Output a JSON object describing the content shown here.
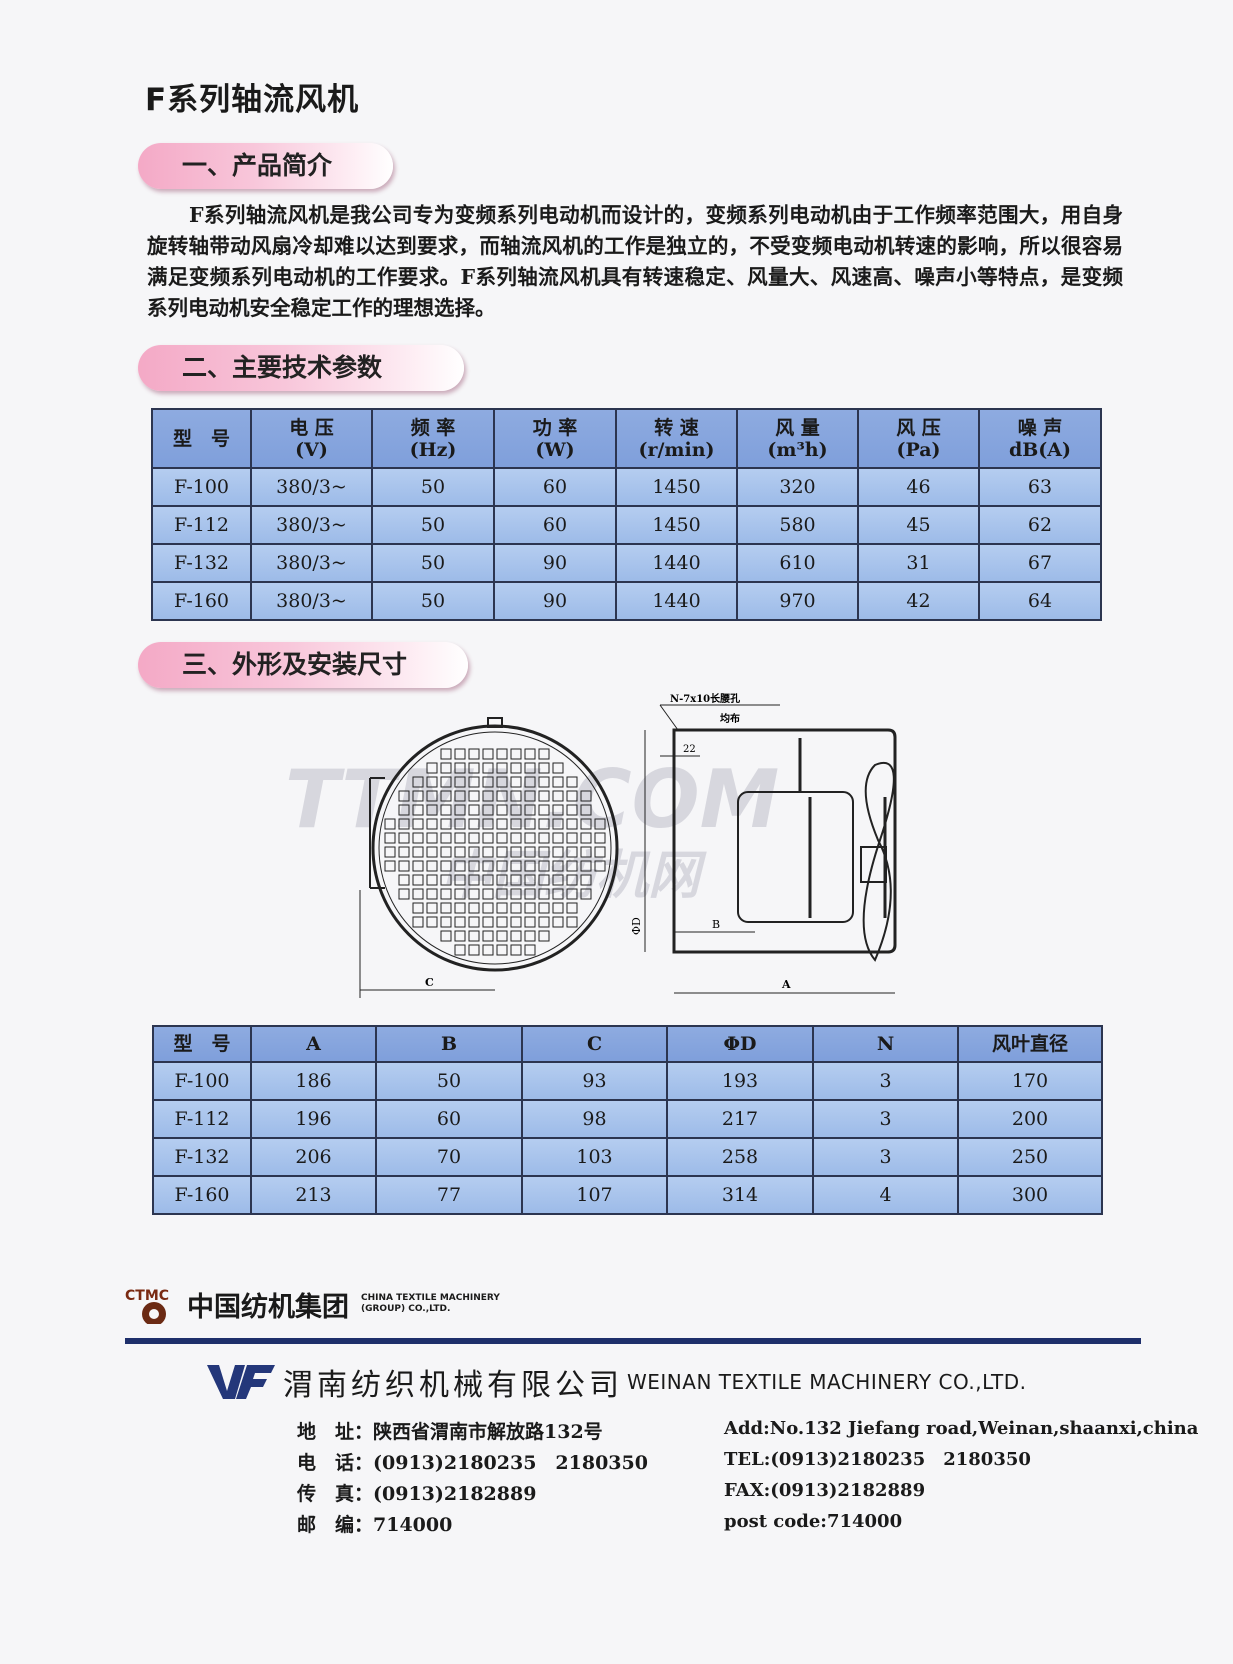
{
  "title": "F系列轴流风机",
  "sections": {
    "intro": "一、产品简介",
    "params": "二、主要技术参数",
    "dims": "三、外形及安装尺寸"
  },
  "intro_text": "F系列轴流风机是我公司专为变频系列电动机而设计的，变频系列电动机由于工作频率范围大，用自身旋转轴带动风扇冷却难以达到要求，而轴流风机的工作是独立的，不受变频电动机转速的影响，所以很容易满足变频系列电动机的工作要求。F系列轴流风机具有转速稳定、风量大、风速高、噪声小等特点，是变频系列电动机安全稳定工作的理想选择。",
  "params_table": {
    "headers": [
      [
        "型　号",
        ""
      ],
      [
        "电 压",
        "(V)"
      ],
      [
        "频 率",
        "(Hz)"
      ],
      [
        "功 率",
        "(W)"
      ],
      [
        "转 速",
        "(r/min)"
      ],
      [
        "风 量",
        "(m³h)"
      ],
      [
        "风 压",
        "(Pa)"
      ],
      [
        "噪 声",
        "dB(A)"
      ]
    ],
    "rows": [
      [
        "F-100",
        "380/3~",
        "50",
        "60",
        "1450",
        "320",
        "46",
        "63"
      ],
      [
        "F-112",
        "380/3~",
        "50",
        "60",
        "1450",
        "580",
        "45",
        "62"
      ],
      [
        "F-132",
        "380/3~",
        "50",
        "90",
        "1440",
        "610",
        "31",
        "67"
      ],
      [
        "F-160",
        "380/3~",
        "50",
        "90",
        "1440",
        "970",
        "42",
        "64"
      ]
    ]
  },
  "drawing": {
    "hole_note": "N-7x10长腰孔",
    "even": "均布",
    "dim_22": "22",
    "dim_D": "ΦD",
    "dim_A": "A",
    "dim_B": "B",
    "dim_C": "C"
  },
  "watermark": {
    "en": "TTMN.COM",
    "cn": "中国纺机网"
  },
  "dims_table": {
    "headers": [
      "型　号",
      "A",
      "B",
      "C",
      "ΦD",
      "N",
      "风叶直径"
    ],
    "rows": [
      [
        "F-100",
        "186",
        "50",
        "93",
        "193",
        "3",
        "170"
      ],
      [
        "F-112",
        "196",
        "60",
        "98",
        "217",
        "3",
        "200"
      ],
      [
        "F-132",
        "206",
        "70",
        "103",
        "258",
        "3",
        "250"
      ],
      [
        "F-160",
        "213",
        "77",
        "107",
        "314",
        "4",
        "300"
      ]
    ]
  },
  "footer": {
    "group_logo": "CTMC",
    "group_cn": "中国纺机集团",
    "group_en1": "CHINA TEXTILE MACHINERY",
    "group_en2": "(GROUP) CO.,LTD.",
    "company_logo": "WF",
    "company_cn": "渭南纺织机械有限公司",
    "company_en": "WEINAN TEXTILE MACHINERY CO.,LTD.",
    "cn_lines": [
      [
        "地　址：",
        "陕西省渭南市解放路132号"
      ],
      [
        "电　话：",
        "(0913)2180235　2180350"
      ],
      [
        "传　真：",
        "(0913)2182889"
      ],
      [
        "邮　编：",
        "714000"
      ]
    ],
    "en_lines": [
      "Add:No.132 Jiefang road,Weinan,shaanxi,china",
      "TEL:(0913)2180235　2180350",
      "FAX:(0913)2182889",
      "post code:714000"
    ]
  },
  "colors": {
    "table_header": "#7f9fdb",
    "table_cell": "#a9c4ec",
    "pill": "#f4a9c6",
    "rule": "#1e2f6b"
  }
}
